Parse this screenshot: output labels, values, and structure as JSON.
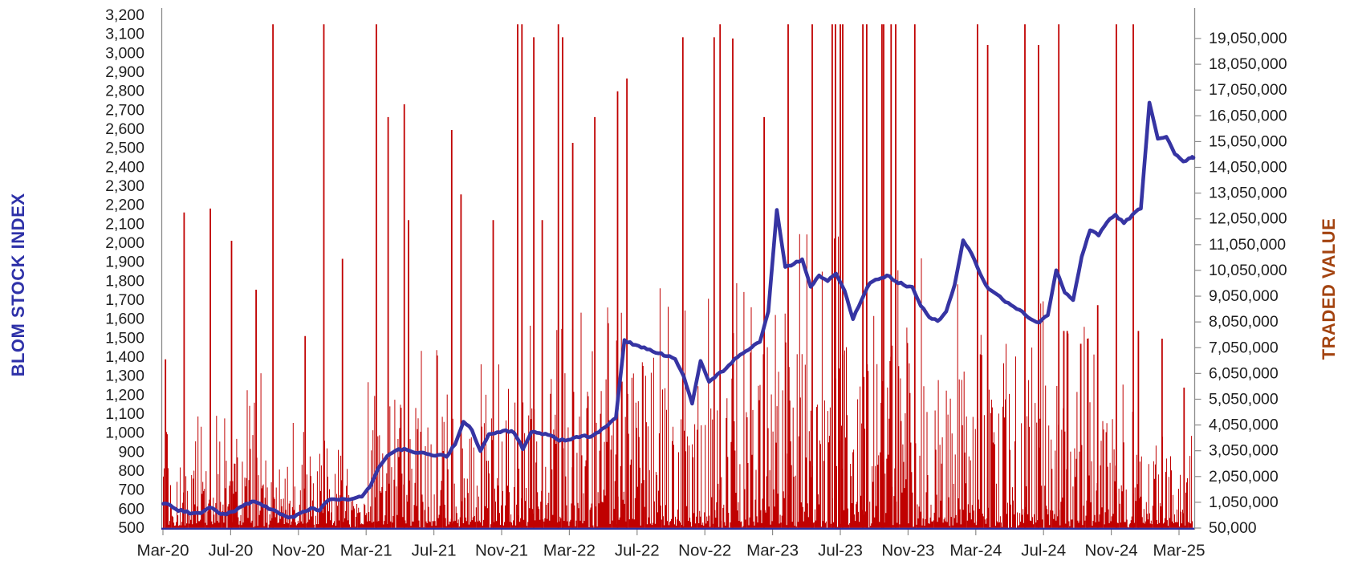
{
  "chart": {
    "left_axis": {
      "title": "BLOM STOCK INDEX",
      "title_color": "#2E31A8",
      "min": 500,
      "max": 3200,
      "step": 100,
      "tick_labels": [
        "3,200",
        "3,100",
        "3,000",
        "2,900",
        "2,800",
        "2,700",
        "2,600",
        "2,500",
        "2,400",
        "2,300",
        "2,200",
        "2,100",
        "2,000",
        "1,900",
        "1,800",
        "1,700",
        "1,600",
        "1,500",
        "1,400",
        "1,300",
        "1,200",
        "1,100",
        "1,000",
        "900",
        "800",
        "700",
        "600",
        "500"
      ]
    },
    "right_axis": {
      "title": "TRADED VALUE",
      "title_color": "#A3430F",
      "min": 50000,
      "max": 19050000,
      "step": 1000000,
      "tick_labels": [
        "19,050,000",
        "18,050,000",
        "17,050,000",
        "16,050,000",
        "15,050,000",
        "14,050,000",
        "13,050,000",
        "12,050,000",
        "11,050,000",
        "10,050,000",
        "9,050,000",
        "8,050,000",
        "7,050,000",
        "6,050,000",
        "5,050,000",
        "4,050,000",
        "3,050,000",
        "2,050,000",
        "1,050,000",
        "50,000"
      ],
      "unit": "traded value"
    },
    "x_axis": {
      "tick_labels": [
        "Mar-20",
        "Jul-20",
        "Nov-20",
        "Mar-21",
        "Jul-21",
        "Nov-21",
        "Mar-22",
        "Jul-22",
        "Nov-22",
        "Mar-23",
        "Jul-23",
        "Nov-23",
        "Mar-24",
        "Jul-24",
        "Nov-24",
        "Mar-25"
      ]
    },
    "colors": {
      "line": "#3634A3",
      "bars": "#C00000",
      "axis_gray": "#8c8c8c",
      "baseline_navy": "#2F2E9E",
      "tick_text": "#1f1f1f"
    }
  },
  "chart_data": {
    "type": "combo",
    "x_start": "Mar-20",
    "x_end": "Mar-25",
    "months": [
      "Mar-20",
      "Apr-20",
      "May-20",
      "Jun-20",
      "Jul-20",
      "Aug-20",
      "Sep-20",
      "Oct-20",
      "Nov-20",
      "Dec-20",
      "Jan-21",
      "Feb-21",
      "Mar-21",
      "Apr-21",
      "May-21",
      "Jun-21",
      "Jul-21",
      "Aug-21",
      "Sep-21",
      "Oct-21",
      "Nov-21",
      "Dec-21",
      "Jan-22",
      "Feb-22",
      "Mar-22",
      "Apr-22",
      "May-22",
      "Jun-22",
      "Jul-22",
      "Aug-22",
      "Sep-22",
      "Oct-22",
      "Nov-22",
      "Dec-22",
      "Jan-23",
      "Feb-23",
      "Mar-23",
      "Apr-23",
      "May-23",
      "Jun-23",
      "Jul-23",
      "Aug-23",
      "Sep-23",
      "Oct-23",
      "Nov-23",
      "Dec-23",
      "Jan-24",
      "Feb-24",
      "Mar-24",
      "Apr-24",
      "May-24",
      "Jun-24",
      "Jul-24",
      "Aug-24",
      "Sep-24",
      "Oct-24",
      "Nov-24",
      "Dec-24",
      "Jan-25",
      "Feb-25",
      "Mar-25"
    ],
    "series": [
      {
        "name": "BLOM Stock Index",
        "type": "line",
        "axis": "left",
        "color": "#3634A3",
        "sampling": "semi-monthly (2 points per month, Mar-20 through Mar-25)",
        "values": [
          628,
          600,
          585,
          578,
          578,
          608,
          582,
          572,
          588,
          618,
          640,
          628,
          600,
          585,
          562,
          558,
          585,
          605,
          592,
          645,
          650,
          652,
          655,
          665,
          720,
          820,
          880,
          908,
          918,
          900,
          898,
          888,
          885,
          875,
          940,
          1060,
          1015,
          905,
          995,
          1005,
          1015,
          1000,
          915,
          1005,
          1000,
          990,
          968,
          960,
          975,
          985,
          980,
          1005,
          1040,
          1080,
          1490,
          1465,
          1450,
          1440,
          1420,
          1405,
          1390,
          1300,
          1155,
          1380,
          1270,
          1310,
          1340,
          1390,
          1420,
          1450,
          1480,
          1640,
          2175,
          1875,
          1890,
          1915,
          1770,
          1830,
          1800,
          1840,
          1750,
          1600,
          1700,
          1790,
          1810,
          1830,
          1800,
          1780,
          1770,
          1670,
          1610,
          1590,
          1640,
          1780,
          2015,
          1945,
          1840,
          1760,
          1730,
          1690,
          1665,
          1640,
          1600,
          1582,
          1620,
          1857,
          1740,
          1700,
          1928,
          2068,
          2040,
          2110,
          2150,
          2105,
          2150,
          2182,
          2740,
          2550,
          2560,
          2470,
          2430,
          2450
        ]
      },
      {
        "name": "Traded Value",
        "type": "bar",
        "axis": "right",
        "color": "#C00000",
        "unit": "millions",
        "note": "daily bars; envelope per month (typical base and frequent-high, in millions) plus explicit major spikes; 19.6 means clipped at plot top (> axis max)",
        "monthly_envelope": {
          "base": [
            0.9,
            1.0,
            1.2,
            1.5,
            1.2,
            1.5,
            1.2,
            1.0,
            1.2,
            1.3,
            1.2,
            0.5,
            1.6,
            2.0,
            2.0,
            1.8,
            1.8,
            2.0,
            1.8,
            2.0,
            2.0,
            2.0,
            2.0,
            2.0,
            2.2,
            2.2,
            2.2,
            2.5,
            2.5,
            2.5,
            2.2,
            1.8,
            2.2,
            2.5,
            2.5,
            3.0,
            3.5,
            3.0,
            3.0,
            3.0,
            3.0,
            3.0,
            3.0,
            3.0,
            2.8,
            2.5,
            2.5,
            2.5,
            2.5,
            2.2,
            2.2,
            2.2,
            2.5,
            2.5,
            2.2,
            1.8,
            1.5,
            1.5,
            1.2,
            1.2,
            1.0
          ],
          "high": [
            4.0,
            4.5,
            5.0,
            6.0,
            5.5,
            6.5,
            5.0,
            4.5,
            5.5,
            6.0,
            5.0,
            2.0,
            7.0,
            8.0,
            7.5,
            7.0,
            7.0,
            7.5,
            6.5,
            7.5,
            8.0,
            8.0,
            8.0,
            8.0,
            9.0,
            9.0,
            9.0,
            10,
            10,
            10,
            9,
            8,
            9,
            10,
            10,
            12,
            13,
            12,
            12,
            12,
            12,
            12,
            12,
            11,
            11,
            10,
            10,
            10,
            10,
            9,
            9,
            9,
            9,
            9,
            8,
            7,
            6,
            6,
            5,
            5,
            4
          ]
        },
        "major_spikes": [
          [
            0.15,
            6.6
          ],
          [
            1.25,
            12.3
          ],
          [
            2.8,
            12.45
          ],
          [
            4.05,
            11.2
          ],
          [
            5.5,
            9.3
          ],
          [
            6.5,
            19.6
          ],
          [
            8.4,
            7.5
          ],
          [
            9.5,
            19.6
          ],
          [
            10.6,
            10.5
          ],
          [
            12.6,
            19.6
          ],
          [
            13.3,
            16.0
          ],
          [
            14.25,
            16.5
          ],
          [
            14.5,
            12.0
          ],
          [
            17.05,
            15.5
          ],
          [
            17.6,
            13.0
          ],
          [
            19.5,
            12.0
          ],
          [
            20.95,
            19.6
          ],
          [
            21.2,
            19.6
          ],
          [
            21.9,
            19.1
          ],
          [
            22.4,
            12.0
          ],
          [
            23.35,
            19.6
          ],
          [
            23.6,
            19.1
          ],
          [
            24.2,
            15.0
          ],
          [
            25.5,
            16.0
          ],
          [
            26.85,
            17.0
          ],
          [
            27.4,
            17.5
          ],
          [
            30.7,
            19.1
          ],
          [
            32.55,
            19.1
          ],
          [
            32.9,
            19.6
          ],
          [
            33.65,
            19.05
          ],
          [
            35.5,
            16.0
          ],
          [
            36.92,
            19.6
          ],
          [
            38.34,
            19.6
          ],
          [
            39.52,
            19.6
          ],
          [
            39.71,
            19.6
          ],
          [
            40.0,
            19.6
          ],
          [
            40.14,
            19.6
          ],
          [
            41.33,
            19.6
          ],
          [
            41.56,
            19.6
          ],
          [
            42.46,
            19.6
          ],
          [
            42.56,
            19.6
          ],
          [
            43.0,
            19.6
          ],
          [
            43.27,
            19.6
          ],
          [
            44.4,
            19.6
          ],
          [
            48.1,
            19.6
          ],
          [
            48.7,
            18.8
          ],
          [
            50.9,
            19.6
          ],
          [
            51.7,
            18.8
          ],
          [
            52.9,
            19.6
          ],
          [
            53.2,
            7.7
          ],
          [
            53.4,
            7.7
          ],
          [
            54.2,
            7.2
          ],
          [
            54.6,
            7.4
          ],
          [
            55.2,
            8.7
          ],
          [
            56.3,
            19.6
          ],
          [
            57.3,
            19.6
          ],
          [
            57.6,
            7.7
          ],
          [
            59.0,
            7.4
          ],
          [
            60.3,
            5.5
          ]
        ]
      }
    ],
    "left_ylim": [
      500,
      3200
    ],
    "right_ylim": [
      50000,
      19050000
    ],
    "grid": "off",
    "legend": "none (axis titles act as series labels)"
  }
}
